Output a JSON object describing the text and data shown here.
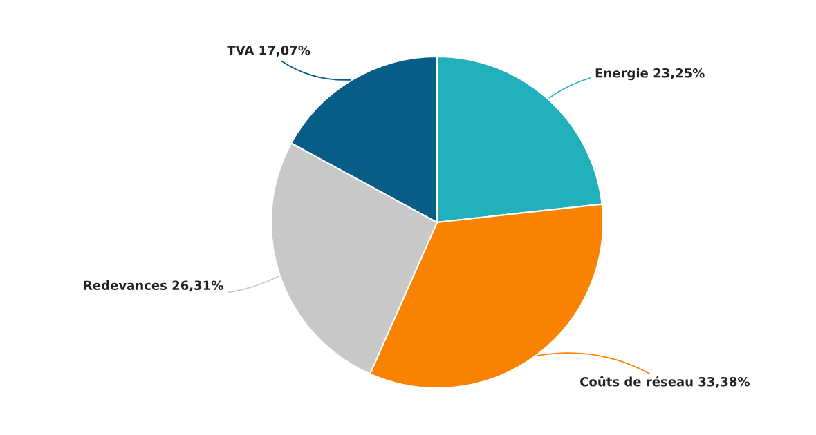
{
  "chart_data": {
    "type": "pie",
    "categories": [
      "Energie",
      "Coûts de réseau",
      "Redevances",
      "TVA"
    ],
    "values": [
      23.25,
      33.38,
      26.31,
      17.07
    ],
    "value_labels": [
      "23,25%",
      "33,38%",
      "26,31%",
      "17,07%"
    ],
    "colors": [
      "#23b0bd",
      "#f98200",
      "#c8c8c8",
      "#075d85"
    ],
    "legend": false
  }
}
